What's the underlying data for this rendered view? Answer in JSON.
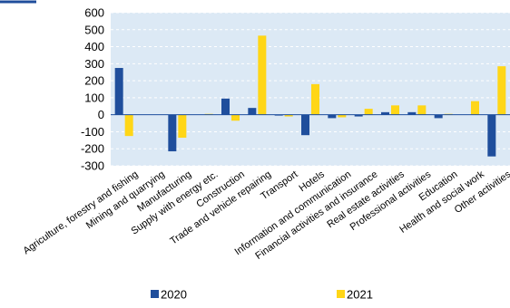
{
  "chart_data": {
    "type": "bar",
    "title": "",
    "xlabel": "",
    "ylabel": "",
    "ylim": [
      -300,
      600
    ],
    "yticks": [
      -300,
      -200,
      -100,
      0,
      100,
      200,
      300,
      400,
      500,
      600
    ],
    "grid": "horizontal, dashed",
    "legend_position": "bottom",
    "categories": [
      "Agriculture, forestry and fishing",
      "Mining and quarrying",
      "Manufacturing",
      "Supply with energy etc.",
      "Construction",
      "Trade and vehicle repairing",
      "Transport",
      "Hotels",
      "Information and communication",
      "Financial activities and insurance",
      "Real estate activities",
      "Professional activities",
      "Education",
      "Health and social work",
      "Other activities"
    ],
    "series": [
      {
        "name": "2020",
        "color": "#1f4e9c",
        "values": [
          275,
          0,
          -215,
          0,
          95,
          40,
          -5,
          -120,
          -20,
          -10,
          15,
          15,
          -20,
          0,
          -245
        ]
      },
      {
        "name": "2021",
        "color": "#ffd617",
        "values": [
          -125,
          0,
          -135,
          5,
          -35,
          465,
          -10,
          180,
          -15,
          35,
          55,
          55,
          5,
          80,
          285
        ]
      }
    ]
  },
  "colors": {
    "plot_background": "#dce9f5",
    "grid": "#ffffff",
    "zero_line": "#1f4e9c",
    "top_accent": "#1f4e9c"
  }
}
